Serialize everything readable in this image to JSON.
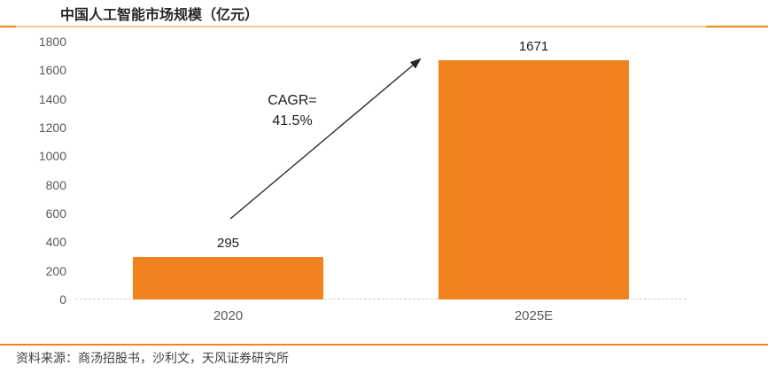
{
  "title": "中国人工智能市场规模（亿元）",
  "source": "资料来源：商汤招股书，沙利文，天风证券研究所",
  "annotation": {
    "line1": "CAGR=",
    "line2": "41.5%"
  },
  "colors": {
    "bar": "#F0831E",
    "accent_dark": "#F08220",
    "accent_light": "#FAC591",
    "axis_text": "#595959",
    "label_text": "#1a1a1a",
    "baseline": "#D4D4D4"
  },
  "chart_data": {
    "type": "bar",
    "title": "中国人工智能市场规模（亿元）",
    "categories": [
      "2020",
      "2025E"
    ],
    "values": [
      295,
      1671
    ],
    "xlabel": "",
    "ylabel": "",
    "ylim": [
      0,
      1800
    ],
    "yticks": [
      0,
      200,
      400,
      600,
      800,
      1000,
      1200,
      1400,
      1600,
      1800
    ],
    "grid": false,
    "legend": false,
    "annotation": "CAGR=41.5%",
    "bar_color": "#F0831E"
  }
}
